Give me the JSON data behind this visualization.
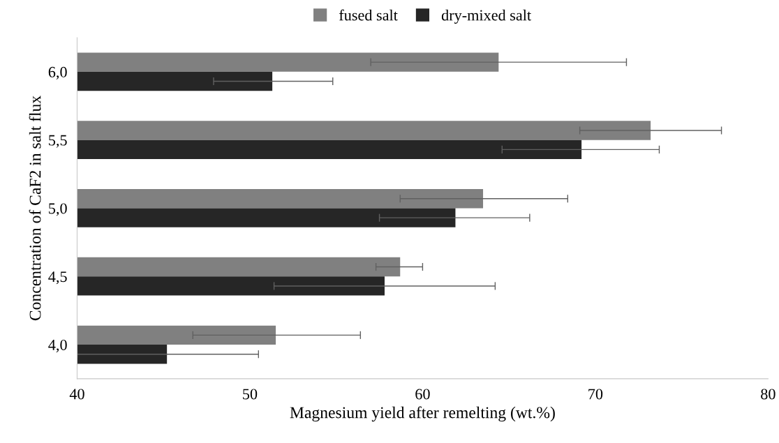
{
  "chart_data": {
    "type": "bar",
    "orientation": "horizontal",
    "categories": [
      "6,0",
      "5,5",
      "5,0",
      "4,5",
      "4,0"
    ],
    "series": [
      {
        "name": "fused salt",
        "color": "#808080",
        "values": [
          64.4,
          73.2,
          63.5,
          58.7,
          51.5
        ],
        "errors": [
          [
            57.0,
            71.8
          ],
          [
            69.1,
            77.3
          ],
          [
            58.7,
            68.4
          ],
          [
            57.3,
            60.0
          ],
          [
            46.7,
            56.4
          ]
        ]
      },
      {
        "name": "dry-mixed salt",
        "color": "#262626",
        "values": [
          51.3,
          69.2,
          61.9,
          57.8,
          45.2
        ],
        "errors": [
          [
            47.9,
            54.8
          ],
          [
            64.6,
            73.7
          ],
          [
            57.5,
            66.2
          ],
          [
            51.4,
            64.2
          ],
          [
            40.0,
            50.5
          ]
        ]
      }
    ],
    "xlabel": "Magnesium yield after remelting (wt.%)",
    "ylabel": "Concentration of CaF2 in salt flux",
    "xlim": [
      40,
      80
    ],
    "xticks": [
      40,
      50,
      60,
      70,
      80
    ],
    "grid": false,
    "legend": "top"
  }
}
